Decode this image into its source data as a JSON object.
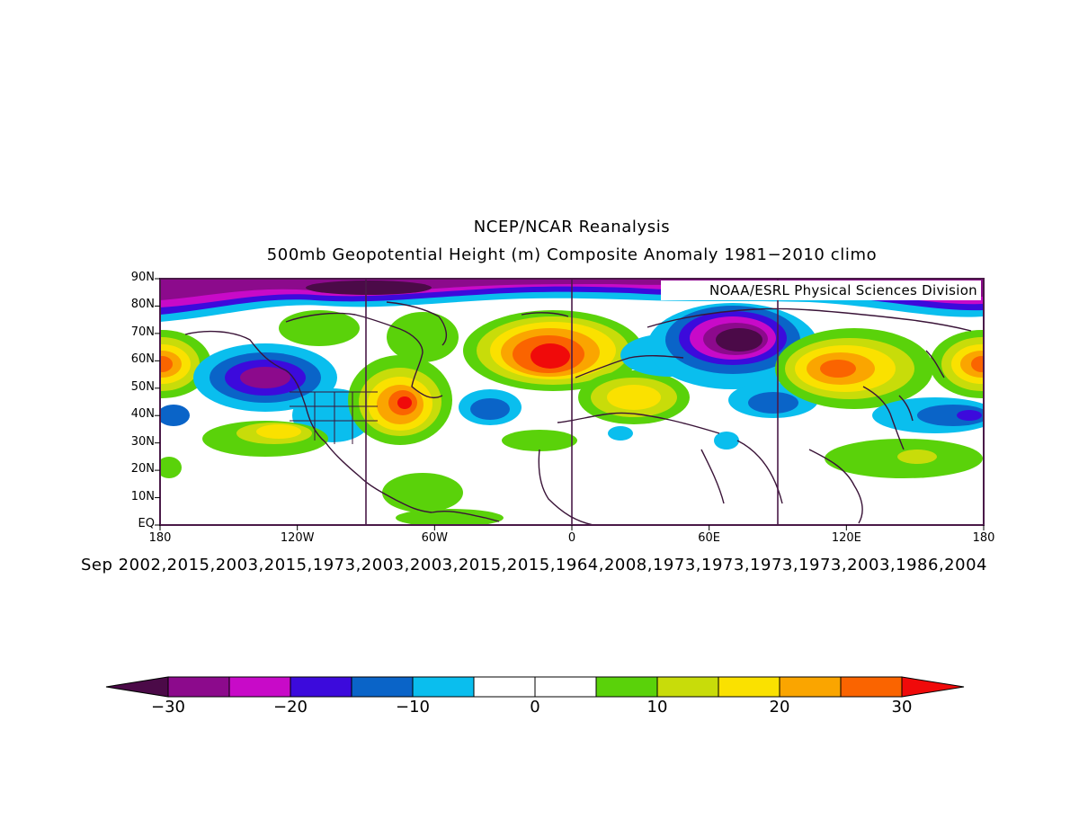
{
  "title": "NCEP/NCAR Reanalysis",
  "subtitle": "500mb Geopotential Height (m) Composite Anomaly 1981−2010 climo",
  "credit": "NOAA/ESRL Physical Sciences Division",
  "composite_label": "Sep 2002,2015,2003,2015,1973,2003,2003,2015,2015,1964,2008,1973,1973,1973,1973,2003,1986,2004",
  "map": {
    "projection": "cylindrical",
    "lon_range": [
      -180,
      180
    ],
    "lat_range": [
      0,
      90
    ],
    "lat_ticks": [
      {
        "lat": 90,
        "label": "90N"
      },
      {
        "lat": 80,
        "label": "80N"
      },
      {
        "lat": 70,
        "label": "70N"
      },
      {
        "lat": 60,
        "label": "60N"
      },
      {
        "lat": 50,
        "label": "50N"
      },
      {
        "lat": 40,
        "label": "40N"
      },
      {
        "lat": 30,
        "label": "30N"
      },
      {
        "lat": 20,
        "label": "20N"
      },
      {
        "lat": 10,
        "label": "10N"
      },
      {
        "lat": 0,
        "label": "EQ"
      }
    ],
    "lon_ticks": [
      {
        "lon": -180,
        "label": "180"
      },
      {
        "lon": -120,
        "label": "120W"
      },
      {
        "lon": -60,
        "label": "60W"
      },
      {
        "lon": 0,
        "label": "0"
      },
      {
        "lon": 60,
        "label": "60E"
      },
      {
        "lon": 120,
        "label": "120E"
      },
      {
        "lon": 180,
        "label": "180"
      }
    ],
    "meridian_lines": [
      -90,
      0,
      90
    ],
    "colors": {
      "frame": "#4a1a48",
      "coast": "#3a1438"
    }
  },
  "colorbar": {
    "levels": [
      -30,
      -25,
      -20,
      -15,
      -10,
      -5,
      0,
      5,
      10,
      15,
      20,
      25,
      30
    ],
    "colors": [
      "#4b0a48",
      "#8c0a8c",
      "#c80ac8",
      "#3c0adc",
      "#0a64c8",
      "#0abeee",
      "#ffffff",
      "#ffffff",
      "#5ad20a",
      "#c8dc0a",
      "#fae100",
      "#faa500",
      "#fa6400",
      "#f00a0a"
    ],
    "labels": [
      {
        "value": -30,
        "text": "−30"
      },
      {
        "value": -20,
        "text": "−20"
      },
      {
        "value": -10,
        "text": "−10"
      },
      {
        "value": 0,
        "text": "0"
      },
      {
        "value": 10,
        "text": "10"
      },
      {
        "value": 20,
        "text": "20"
      },
      {
        "value": 30,
        "text": "30"
      }
    ]
  },
  "anomaly_centers": [
    {
      "name": "polar-low-band",
      "lon": -80,
      "lat": 88,
      "value": -30
    },
    {
      "name": "aleutian-high",
      "lon": -178,
      "lat": 59,
      "value": 25
    },
    {
      "name": "gulf-alaska-low",
      "lon": -128,
      "lat": 53,
      "value": -25
    },
    {
      "name": "eastern-north-america-high",
      "lon": -75,
      "lat": 46,
      "value": 30
    },
    {
      "name": "western-us-low",
      "lon": -100,
      "lat": 40,
      "value": -10
    },
    {
      "name": "north-atlantic-low",
      "lon": -38,
      "lat": 42,
      "value": -15
    },
    {
      "name": "east-atlantic-high",
      "lon": -5,
      "lat": 63,
      "value": 30
    },
    {
      "name": "europe-high",
      "lon": 20,
      "lat": 47,
      "value": 20
    },
    {
      "name": "kara-sea-low",
      "lon": 70,
      "lat": 68,
      "value": -30
    },
    {
      "name": "east-asia-high",
      "lon": 115,
      "lat": 55,
      "value": 25
    },
    {
      "name": "north-pacific-high",
      "lon": 175,
      "lat": 58,
      "value": 25
    },
    {
      "name": "japan-low",
      "lon": 165,
      "lat": 40,
      "value": -15
    },
    {
      "name": "subtropical-pacific-high",
      "lon": 150,
      "lat": 25,
      "value": 15
    },
    {
      "name": "northeast-pacific-high",
      "lon": -140,
      "lat": 32,
      "value": 15
    }
  ]
}
